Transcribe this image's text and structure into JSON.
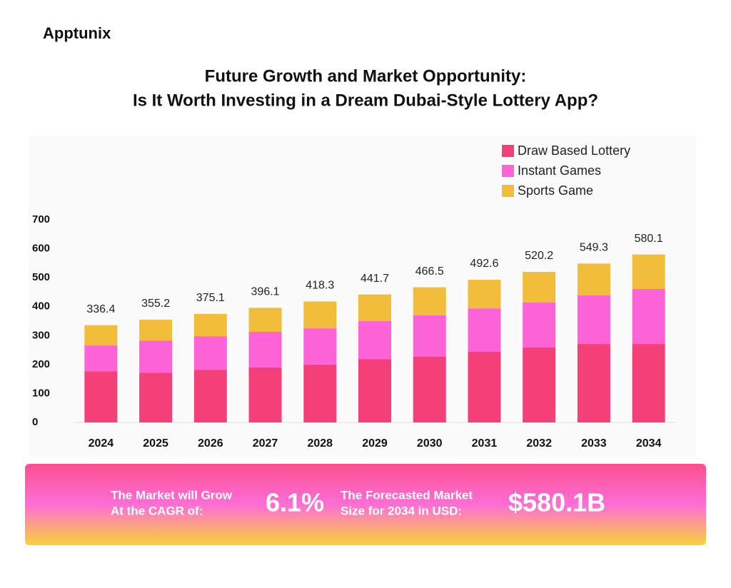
{
  "header": {
    "brand": "Apptunix",
    "title": [
      "Future Growth and Market Opportunity:",
      "Is It Worth Investing in a Dream Dubai-Style Lottery App?"
    ]
  },
  "chart_data": {
    "type": "stacked-bar",
    "categories": [
      "2024",
      "2025",
      "2026",
      "2027",
      "2028",
      "2029",
      "2030",
      "2031",
      "2032",
      "2033",
      "2034"
    ],
    "series": [
      {
        "name": "Draw Based Lottery",
        "color": "#f43f78",
        "values": [
          177,
          172,
          182,
          190,
          200,
          219,
          227,
          244,
          259,
          271,
          271
        ]
      },
      {
        "name": "Instant Games",
        "color": "#fd62d6",
        "values": [
          89,
          111,
          116,
          123,
          125,
          131,
          143,
          150,
          155,
          168,
          190
        ]
      },
      {
        "name": "Sports Game",
        "color": "#f2bd3b",
        "values": [
          70,
          72,
          77,
          83,
          93,
          92,
          97,
          99,
          106,
          110,
          119
        ]
      }
    ],
    "totals": [
      336.4,
      355.2,
      375.1,
      396.1,
      418.3,
      441.7,
      466.5,
      492.6,
      520.2,
      549.3,
      580.1
    ],
    "ylim": [
      0,
      700
    ],
    "yticks": [
      0,
      100,
      200,
      300,
      400,
      500,
      600,
      700
    ],
    "legend": "top-right"
  },
  "banner": {
    "stats": [
      {
        "label": [
          "The Market will Grow",
          "At the CAGR of:"
        ],
        "value": "6.1%"
      },
      {
        "label": [
          "The Forecasted Market",
          "Size for 2034 in USD:"
        ],
        "value": "$580.1B"
      }
    ]
  }
}
